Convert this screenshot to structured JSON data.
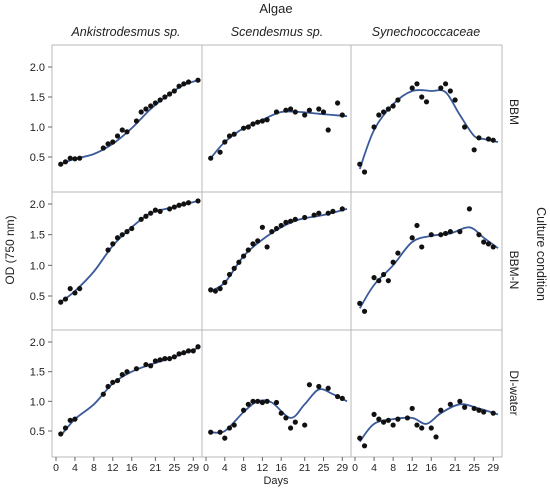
{
  "labels": {
    "top_title": "Algae",
    "columns": [
      "Ankistrodesmus sp.",
      "Scendesmus sp.",
      "Synechococcaceae"
    ],
    "rows": [
      "BBM",
      "BBM-N",
      "DI-water"
    ],
    "right_title": "Culture condition",
    "y_axis": "OD (750 nm)",
    "x_axis": "Days"
  },
  "chart_data": {
    "type": "scatter",
    "x_ticks": [
      0,
      4,
      8,
      12,
      16,
      21,
      25,
      29
    ],
    "y_ticks": [
      0.5,
      1.0,
      1.5,
      2.0
    ],
    "y_tick_labels": [
      "0.5",
      "1.0",
      "1.5",
      "2.0"
    ],
    "xlim": [
      0,
      30
    ],
    "ylim": [
      0.2,
      2.2
    ],
    "panels": [
      {
        "column": "Ankistrodesmus sp.",
        "row": "BBM",
        "points": [
          [
            1,
            0.38
          ],
          [
            2,
            0.42
          ],
          [
            3,
            0.48
          ],
          [
            4,
            0.47
          ],
          [
            5,
            0.48
          ],
          [
            10,
            0.65
          ],
          [
            11,
            0.72
          ],
          [
            12,
            0.75
          ],
          [
            13,
            0.85
          ],
          [
            14,
            0.95
          ],
          [
            15,
            0.92
          ],
          [
            17,
            1.1
          ],
          [
            18,
            1.25
          ],
          [
            19,
            1.3
          ],
          [
            20,
            1.35
          ],
          [
            21,
            1.4
          ],
          [
            22,
            1.45
          ],
          [
            23,
            1.5
          ],
          [
            24,
            1.55
          ],
          [
            25,
            1.6
          ],
          [
            26,
            1.68
          ],
          [
            27,
            1.72
          ],
          [
            28,
            1.75
          ],
          [
            30,
            1.78
          ]
        ],
        "fit": [
          [
            1,
            0.38
          ],
          [
            4,
            0.47
          ],
          [
            8,
            0.55
          ],
          [
            12,
            0.72
          ],
          [
            16,
            0.98
          ],
          [
            20,
            1.3
          ],
          [
            24,
            1.55
          ],
          [
            27,
            1.7
          ],
          [
            30,
            1.78
          ]
        ]
      },
      {
        "column": "Scendesmus sp.",
        "row": "BBM",
        "points": [
          [
            1,
            0.48
          ],
          [
            3,
            0.58
          ],
          [
            4,
            0.75
          ],
          [
            5,
            0.85
          ],
          [
            6,
            0.88
          ],
          [
            8,
            0.98
          ],
          [
            9,
            1.0
          ],
          [
            10,
            1.05
          ],
          [
            11,
            1.08
          ],
          [
            12,
            1.1
          ],
          [
            13,
            1.12
          ],
          [
            15,
            1.25
          ],
          [
            17,
            1.28
          ],
          [
            18,
            1.3
          ],
          [
            19,
            1.25
          ],
          [
            21,
            1.2
          ],
          [
            22,
            1.28
          ],
          [
            24,
            1.3
          ],
          [
            25,
            1.25
          ],
          [
            26,
            0.95
          ],
          [
            28,
            1.4
          ],
          [
            29,
            1.2
          ]
        ],
        "fit": [
          [
            1,
            0.48
          ],
          [
            4,
            0.75
          ],
          [
            8,
            0.98
          ],
          [
            12,
            1.12
          ],
          [
            16,
            1.25
          ],
          [
            20,
            1.25
          ],
          [
            24,
            1.22
          ],
          [
            27,
            1.2
          ],
          [
            30,
            1.18
          ]
        ]
      },
      {
        "column": "Synechococcaceae",
        "row": "BBM",
        "points": [
          [
            1,
            0.38
          ],
          [
            2,
            0.25
          ],
          [
            4,
            1.0
          ],
          [
            5,
            1.2
          ],
          [
            6,
            1.25
          ],
          [
            7,
            1.3
          ],
          [
            8,
            1.35
          ],
          [
            9,
            1.45
          ],
          [
            12,
            1.65
          ],
          [
            13,
            1.72
          ],
          [
            14,
            1.5
          ],
          [
            15,
            1.42
          ],
          [
            18,
            1.65
          ],
          [
            19,
            1.72
          ],
          [
            20,
            1.6
          ],
          [
            21,
            1.45
          ],
          [
            23,
            1.0
          ],
          [
            25,
            0.62
          ],
          [
            26,
            0.82
          ],
          [
            28,
            0.8
          ],
          [
            29,
            0.78
          ]
        ],
        "fit": [
          [
            1,
            0.3
          ],
          [
            4,
            0.95
          ],
          [
            8,
            1.38
          ],
          [
            12,
            1.6
          ],
          [
            16,
            1.6
          ],
          [
            19,
            1.58
          ],
          [
            22,
            1.2
          ],
          [
            25,
            0.85
          ],
          [
            27,
            0.8
          ],
          [
            30,
            0.75
          ]
        ]
      },
      {
        "column": "Ankistrodesmus sp.",
        "row": "BBM-N",
        "points": [
          [
            1,
            0.4
          ],
          [
            2,
            0.45
          ],
          [
            3,
            0.62
          ],
          [
            4,
            0.55
          ],
          [
            5,
            0.62
          ],
          [
            11,
            1.25
          ],
          [
            12,
            1.35
          ],
          [
            13,
            1.45
          ],
          [
            14,
            1.5
          ],
          [
            15,
            1.55
          ],
          [
            16,
            1.6
          ],
          [
            18,
            1.75
          ],
          [
            19,
            1.8
          ],
          [
            20,
            1.85
          ],
          [
            21,
            1.9
          ],
          [
            22,
            1.88
          ],
          [
            24,
            1.92
          ],
          [
            25,
            1.95
          ],
          [
            26,
            1.98
          ],
          [
            27,
            2.0
          ],
          [
            28,
            2.02
          ],
          [
            30,
            2.05
          ]
        ],
        "fit": [
          [
            1,
            0.4
          ],
          [
            4,
            0.58
          ],
          [
            8,
            0.9
          ],
          [
            12,
            1.32
          ],
          [
            16,
            1.62
          ],
          [
            20,
            1.85
          ],
          [
            25,
            1.95
          ],
          [
            30,
            2.05
          ]
        ]
      },
      {
        "column": "Scendesmus sp.",
        "row": "BBM-N",
        "points": [
          [
            1,
            0.6
          ],
          [
            2,
            0.58
          ],
          [
            3,
            0.62
          ],
          [
            4,
            0.72
          ],
          [
            5,
            0.85
          ],
          [
            6,
            0.95
          ],
          [
            7,
            1.05
          ],
          [
            8,
            1.15
          ],
          [
            9,
            1.25
          ],
          [
            10,
            1.35
          ],
          [
            11,
            1.4
          ],
          [
            12,
            1.62
          ],
          [
            13,
            1.3
          ],
          [
            14,
            1.55
          ],
          [
            15,
            1.6
          ],
          [
            16,
            1.65
          ],
          [
            17,
            1.7
          ],
          [
            18,
            1.72
          ],
          [
            19,
            1.75
          ],
          [
            21,
            1.78
          ],
          [
            23,
            1.82
          ],
          [
            24,
            1.85
          ],
          [
            26,
            1.85
          ],
          [
            27,
            1.88
          ],
          [
            29,
            1.92
          ]
        ],
        "fit": [
          [
            1,
            0.58
          ],
          [
            4,
            0.72
          ],
          [
            8,
            1.15
          ],
          [
            12,
            1.42
          ],
          [
            16,
            1.62
          ],
          [
            20,
            1.75
          ],
          [
            25,
            1.82
          ],
          [
            30,
            1.92
          ]
        ]
      },
      {
        "column": "Synechococcaceae",
        "row": "BBM-N",
        "points": [
          [
            1,
            0.38
          ],
          [
            2,
            0.25
          ],
          [
            4,
            0.8
          ],
          [
            5,
            0.75
          ],
          [
            6,
            0.85
          ],
          [
            7,
            0.75
          ],
          [
            8,
            1.05
          ],
          [
            9,
            1.2
          ],
          [
            12,
            1.45
          ],
          [
            13,
            1.65
          ],
          [
            14,
            1.3
          ],
          [
            16,
            1.5
          ],
          [
            18,
            1.5
          ],
          [
            19,
            1.52
          ],
          [
            20,
            1.55
          ],
          [
            22,
            1.55
          ],
          [
            24,
            1.92
          ],
          [
            26,
            1.5
          ],
          [
            27,
            1.38
          ],
          [
            28,
            1.35
          ],
          [
            29,
            1.3
          ]
        ],
        "fit": [
          [
            1,
            0.3
          ],
          [
            4,
            0.68
          ],
          [
            8,
            1.0
          ],
          [
            12,
            1.38
          ],
          [
            16,
            1.48
          ],
          [
            20,
            1.52
          ],
          [
            24,
            1.62
          ],
          [
            27,
            1.45
          ],
          [
            30,
            1.28
          ]
        ]
      },
      {
        "column": "Ankistrodesmus sp.",
        "row": "DI-water",
        "points": [
          [
            1,
            0.45
          ],
          [
            2,
            0.55
          ],
          [
            3,
            0.68
          ],
          [
            4,
            0.7
          ],
          [
            10,
            1.12
          ],
          [
            11,
            1.25
          ],
          [
            12,
            1.32
          ],
          [
            13,
            1.35
          ],
          [
            14,
            1.45
          ],
          [
            15,
            1.5
          ],
          [
            17,
            1.55
          ],
          [
            19,
            1.62
          ],
          [
            20,
            1.6
          ],
          [
            21,
            1.68
          ],
          [
            22,
            1.7
          ],
          [
            23,
            1.72
          ],
          [
            24,
            1.72
          ],
          [
            25,
            1.75
          ],
          [
            26,
            1.8
          ],
          [
            27,
            1.82
          ],
          [
            28,
            1.85
          ],
          [
            29,
            1.85
          ],
          [
            30,
            1.92
          ]
        ],
        "fit": [
          [
            1,
            0.42
          ],
          [
            4,
            0.7
          ],
          [
            8,
            0.95
          ],
          [
            12,
            1.3
          ],
          [
            16,
            1.5
          ],
          [
            20,
            1.62
          ],
          [
            25,
            1.75
          ],
          [
            30,
            1.9
          ]
        ]
      },
      {
        "column": "Scendesmus sp.",
        "row": "DI-water",
        "points": [
          [
            1,
            0.48
          ],
          [
            3,
            0.48
          ],
          [
            4,
            0.38
          ],
          [
            5,
            0.55
          ],
          [
            6,
            0.6
          ],
          [
            8,
            0.85
          ],
          [
            9,
            0.95
          ],
          [
            10,
            1.0
          ],
          [
            11,
            1.0
          ],
          [
            12,
            0.98
          ],
          [
            13,
            1.0
          ],
          [
            15,
            0.98
          ],
          [
            16,
            0.8
          ],
          [
            17,
            0.72
          ],
          [
            18,
            0.55
          ],
          [
            19,
            0.65
          ],
          [
            21,
            0.6
          ],
          [
            22,
            1.28
          ],
          [
            24,
            1.25
          ],
          [
            26,
            1.22
          ],
          [
            28,
            1.08
          ],
          [
            29,
            1.05
          ]
        ],
        "fit": [
          [
            1,
            0.48
          ],
          [
            4,
            0.5
          ],
          [
            8,
            0.82
          ],
          [
            11,
            1.0
          ],
          [
            14,
            0.98
          ],
          [
            18,
            0.72
          ],
          [
            21,
            0.95
          ],
          [
            24,
            1.2
          ],
          [
            27,
            1.12
          ],
          [
            30,
            1.0
          ]
        ]
      },
      {
        "column": "Synechococcaceae",
        "row": "DI-water",
        "points": [
          [
            1,
            0.38
          ],
          [
            2,
            0.25
          ],
          [
            4,
            0.78
          ],
          [
            5,
            0.7
          ],
          [
            6,
            0.65
          ],
          [
            7,
            0.68
          ],
          [
            8,
            0.6
          ],
          [
            9,
            0.7
          ],
          [
            11,
            0.72
          ],
          [
            12,
            0.88
          ],
          [
            13,
            0.6
          ],
          [
            14,
            0.55
          ],
          [
            16,
            0.55
          ],
          [
            17,
            0.4
          ],
          [
            18,
            0.85
          ],
          [
            20,
            0.95
          ],
          [
            22,
            1.0
          ],
          [
            23,
            0.9
          ],
          [
            25,
            0.88
          ],
          [
            26,
            0.85
          ],
          [
            27,
            0.82
          ],
          [
            29,
            0.8
          ]
        ],
        "fit": [
          [
            1,
            0.32
          ],
          [
            4,
            0.62
          ],
          [
            8,
            0.7
          ],
          [
            12,
            0.72
          ],
          [
            15,
            0.62
          ],
          [
            18,
            0.8
          ],
          [
            22,
            0.95
          ],
          [
            26,
            0.88
          ],
          [
            30,
            0.78
          ]
        ]
      }
    ],
    "style": {
      "point_color": "#111111",
      "line_color": "#3a5a9b",
      "frame_color": "#b8b8b8",
      "text_color": "#222222"
    }
  }
}
